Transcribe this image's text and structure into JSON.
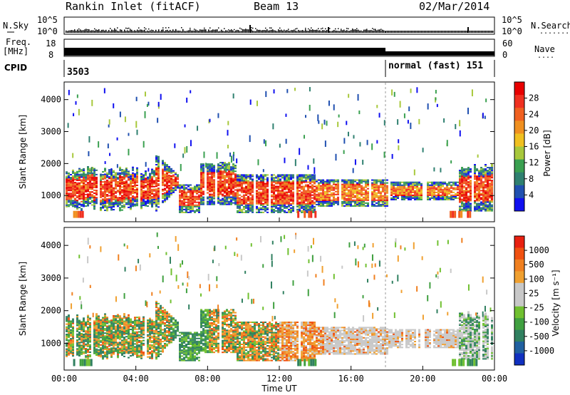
{
  "header": {
    "title": "Rankin Inlet (fitACF)",
    "beam": "Beam 13",
    "date": "02/Mar/2014"
  },
  "status_panels": {
    "nsky_label": "N.Sky",
    "nsearch_label": "N.Search",
    "nsearch_dots": ".......",
    "noise_ticks_left": [
      "10^5",
      "10^0"
    ],
    "noise_ticks_right": [
      "10^5",
      "10^0"
    ],
    "freq_label": "Freq.",
    "freq_unit": "[MHz]",
    "freq_ticks": [
      "18",
      "8"
    ],
    "nave_label": "Nave",
    "nave_dots": "....",
    "nave_ticks": [
      "60",
      "0"
    ],
    "cpid_label": "CPID",
    "cpid_left": "3503",
    "cpid_right": "normal (fast) 151"
  },
  "x_axis": {
    "label": "Time UT",
    "ticks": [
      "00:00",
      "04:00",
      "08:00",
      "12:00",
      "16:00",
      "20:00",
      "00:00"
    ]
  },
  "chart_data": [
    {
      "type": "heatmap",
      "panel": "power",
      "x_range_hours": [
        0,
        24
      ],
      "ylabel": "Slant Range [km]",
      "yticks": [
        "1000",
        "2000",
        "3000",
        "4000"
      ],
      "ylim": [
        180,
        4550
      ],
      "colorbar": {
        "label": "Power [dB]",
        "ticks": [
          "4",
          "8",
          "12",
          "16",
          "20",
          "24",
          "28"
        ],
        "colors": [
          "#1010f0",
          "#2050b0",
          "#2f8070",
          "#3aa050",
          "#a8c83c",
          "#f0c020",
          "#f09020",
          "#f06020",
          "#f03020",
          "#e80000"
        ]
      }
    },
    {
      "type": "heatmap",
      "panel": "velocity",
      "x_range_hours": [
        0,
        24
      ],
      "ylabel": "Slant Range [km]",
      "yticks": [
        "1000",
        "2000",
        "3000",
        "4000"
      ],
      "ylim": [
        180,
        4550
      ],
      "colorbar": {
        "label": "Velocity [m s⁻¹]",
        "ticks": [
          "1000",
          "500",
          "100",
          "25",
          "-25",
          "-100",
          "-500",
          "-1000"
        ],
        "colors": [
          "#1030c0",
          "#2060a0",
          "#308060",
          "#40a040",
          "#70c030",
          "#c8c8c8",
          "#c8c8c8",
          "#f0a030",
          "#f08020",
          "#f05010",
          "#e82010"
        ]
      }
    }
  ]
}
